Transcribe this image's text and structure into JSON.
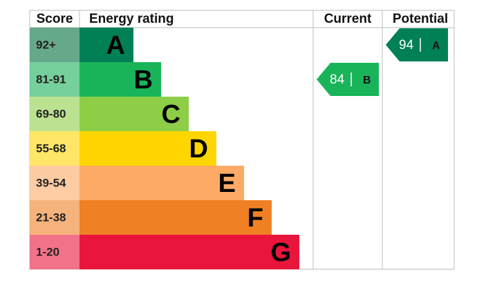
{
  "header": {
    "score": "Score",
    "rating": "Energy rating",
    "current": "Current",
    "potential": "Potential"
  },
  "bands": [
    {
      "score": "92+",
      "letter": "A",
      "color": "#008054",
      "light": "#66a98a",
      "dark_text": false
    },
    {
      "score": "81-91",
      "letter": "B",
      "color": "#19b459",
      "light": "#75d09b",
      "dark_text": false
    },
    {
      "score": "69-80",
      "letter": "C",
      "color": "#8dce46",
      "light": "#bbe290",
      "dark_text": true
    },
    {
      "score": "55-68",
      "letter": "D",
      "color": "#ffd500",
      "light": "#ffe666",
      "dark_text": true
    },
    {
      "score": "39-54",
      "letter": "E",
      "color": "#fcaa65",
      "light": "#fdcca3",
      "dark_text": true
    },
    {
      "score": "21-38",
      "letter": "F",
      "color": "#ef8023",
      "light": "#f5b37b",
      "dark_text": true
    },
    {
      "score": "1-20",
      "letter": "G",
      "color": "#e9153b",
      "light": "#f27389",
      "dark_text": true
    }
  ],
  "current": {
    "score": 84,
    "rating": "B"
  },
  "potential": {
    "score": 94,
    "rating": "A"
  }
}
